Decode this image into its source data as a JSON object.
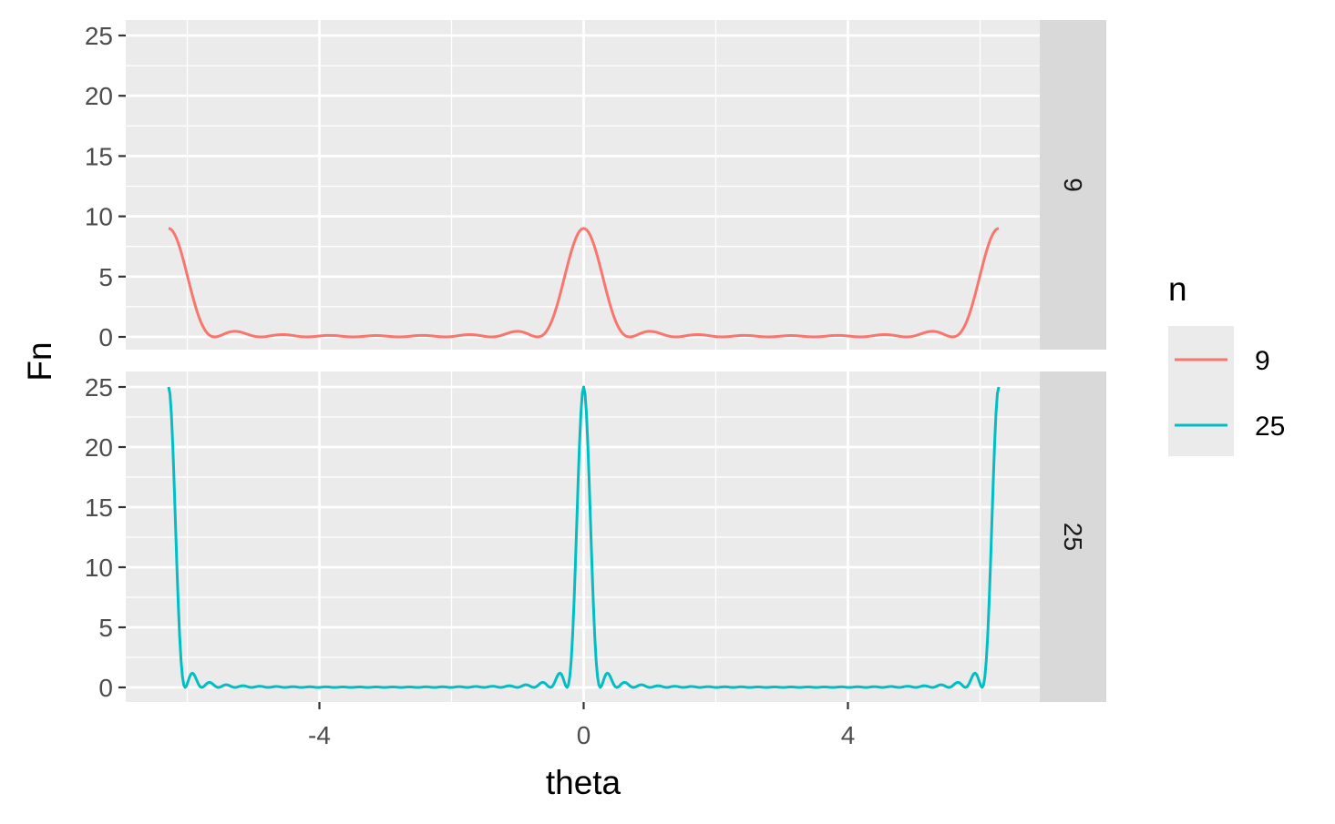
{
  "chart_data": {
    "type": "line",
    "xlabel": "theta",
    "ylabel": "Fn",
    "xlim": [
      -6.283,
      6.283
    ],
    "ylim": [
      0,
      25
    ],
    "x_ticks": [
      -4,
      0,
      4
    ],
    "x_tick_labels": [
      "-4",
      "0",
      "4"
    ],
    "y_ticks": [
      0,
      5,
      10,
      15,
      20,
      25
    ],
    "y_tick_labels": [
      "0",
      "5",
      "10",
      "15",
      "20",
      "25"
    ],
    "grid": true,
    "legend": {
      "title": "n",
      "placement": "right",
      "entries": [
        "9",
        "25"
      ]
    },
    "series": [
      {
        "name": "9",
        "facet_label": "9",
        "color": "#F8766D",
        "function": "Fejer kernel sin^2(n*theta/2) / (n*sin^2(theta/2)), n = 9",
        "n": 9
      },
      {
        "name": "25",
        "facet_label": "25",
        "color": "#00BFC4",
        "function": "Fejer kernel sin^2(n*theta/2) / (n*sin^2(theta/2)), n = 25",
        "n": 25
      }
    ]
  }
}
